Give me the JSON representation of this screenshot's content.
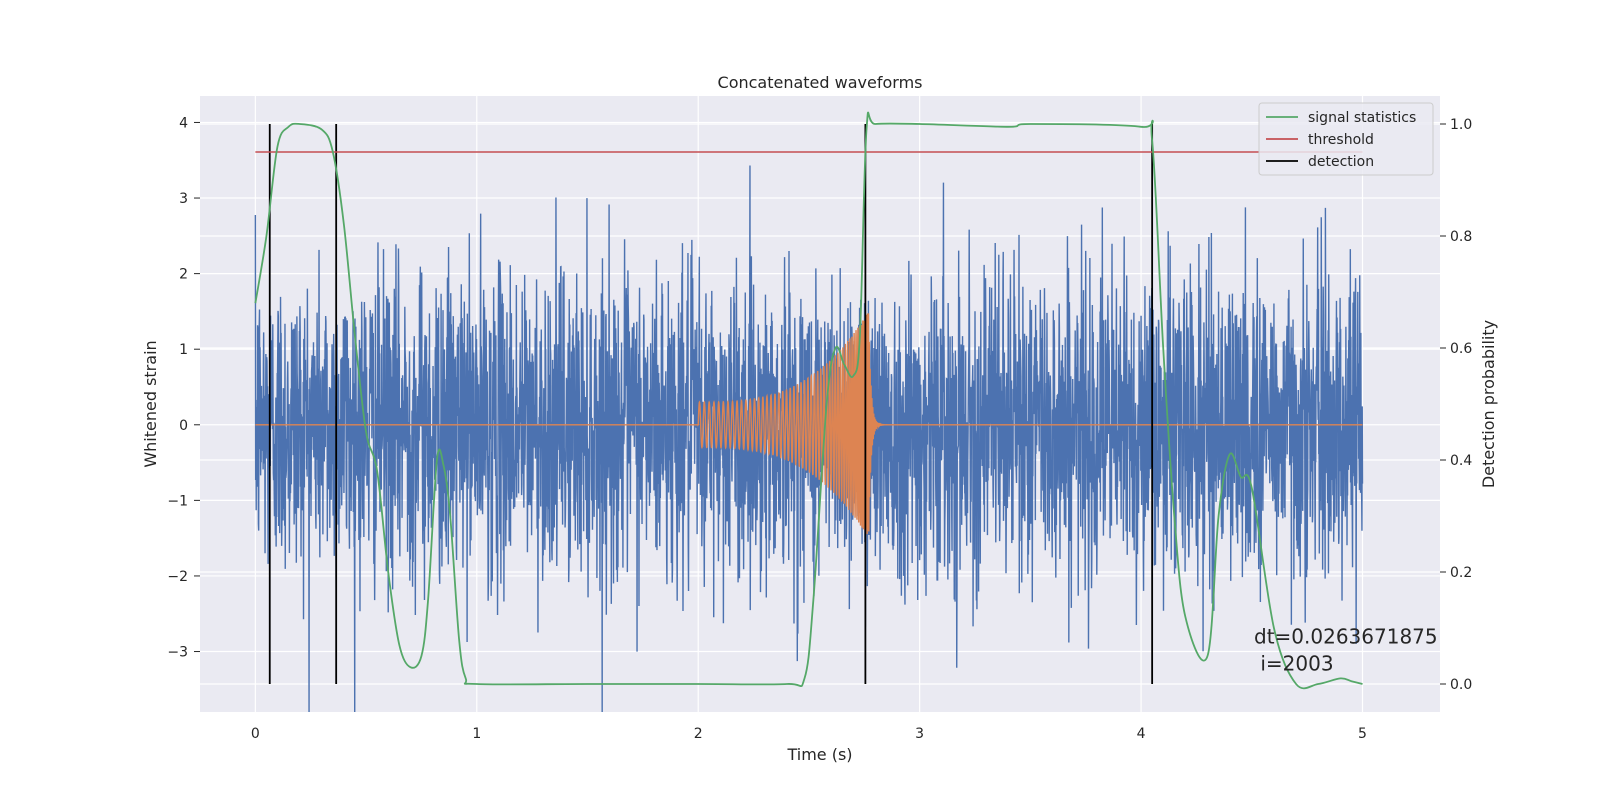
{
  "chart_data": {
    "type": "line",
    "title": "Concatenated waveforms",
    "xlabel": "Time (s)",
    "ylabel": "Whitened strain",
    "y2label": "Detection probability",
    "xlim": [
      -0.25,
      5.35
    ],
    "ylim": [
      -3.8,
      4.35
    ],
    "y2lim": [
      -0.05,
      1.05
    ],
    "xticks": [
      0,
      1,
      2,
      3,
      4,
      5
    ],
    "yticks": [
      -3,
      -2,
      -1,
      0,
      1,
      2,
      3,
      4
    ],
    "y2ticks": [
      0.0,
      0.2,
      0.4,
      0.6,
      0.8,
      1.0
    ],
    "ytick_labels": [
      "−3",
      "−2",
      "−1",
      "0",
      "1",
      "2",
      "3",
      "4"
    ],
    "y2tick_labels": [
      "0.0",
      "0.2",
      "0.4",
      "0.6",
      "0.8",
      "1.0"
    ],
    "grid": true,
    "legend_position": "top-right",
    "legend": [
      "signal statistics",
      "threshold",
      "detection"
    ],
    "colors": {
      "noise": "#4c72b0",
      "injection": "#dd8452",
      "signal_statistics": "#55a868",
      "threshold": "#c44e52",
      "detection": "#000000",
      "background": "#eaeaf2",
      "grid": "#ffffff"
    },
    "noise": {
      "x_range": [
        0,
        5
      ],
      "typical_amplitude": 1.0,
      "peak_amplitude": 3.8
    },
    "injection": {
      "t_start": 2.0,
      "t_merger": 2.77,
      "t_end": 3.0,
      "start_amplitude": 0.3,
      "peak_amplitude": 1.5
    },
    "threshold": {
      "y2": 0.95,
      "x_range": [
        0,
        5
      ]
    },
    "detections_x": [
      0.065,
      0.365,
      2.755,
      4.05
    ],
    "signal_statistics": {
      "x": [
        0.0,
        0.05,
        0.1,
        0.15,
        0.2,
        0.3,
        0.35,
        0.4,
        0.45,
        0.5,
        0.55,
        0.6,
        0.65,
        0.7,
        0.75,
        0.78,
        0.82,
        0.85,
        0.88,
        0.92,
        0.95,
        1.0,
        1.5,
        2.0,
        2.4,
        2.48,
        2.52,
        2.58,
        2.62,
        2.66,
        2.7,
        2.73,
        2.76,
        2.8,
        3.0,
        3.4,
        3.5,
        4.0,
        4.05,
        4.1,
        4.15,
        4.2,
        4.3,
        4.35,
        4.4,
        4.45,
        4.5,
        4.6,
        4.7,
        4.8,
        4.9,
        4.95,
        5.0
      ],
      "y2": [
        0.68,
        0.8,
        0.96,
        0.995,
        1.0,
        0.99,
        0.95,
        0.82,
        0.62,
        0.45,
        0.38,
        0.2,
        0.07,
        0.03,
        0.05,
        0.15,
        0.4,
        0.39,
        0.3,
        0.08,
        0.01,
        0.0,
        0.0,
        0.0,
        0.0,
        0.01,
        0.15,
        0.5,
        0.6,
        0.57,
        0.55,
        0.62,
        0.99,
        1.0,
        1.0,
        0.995,
        1.0,
        0.995,
        0.97,
        0.6,
        0.3,
        0.12,
        0.05,
        0.3,
        0.41,
        0.37,
        0.35,
        0.1,
        0.0,
        0.0,
        0.01,
        0.005,
        0.0
      ]
    },
    "annotation": {
      "line1": "dt=0.0263671875",
      "line2": " i=2003",
      "x": 4.51,
      "y": -2.6
    }
  }
}
